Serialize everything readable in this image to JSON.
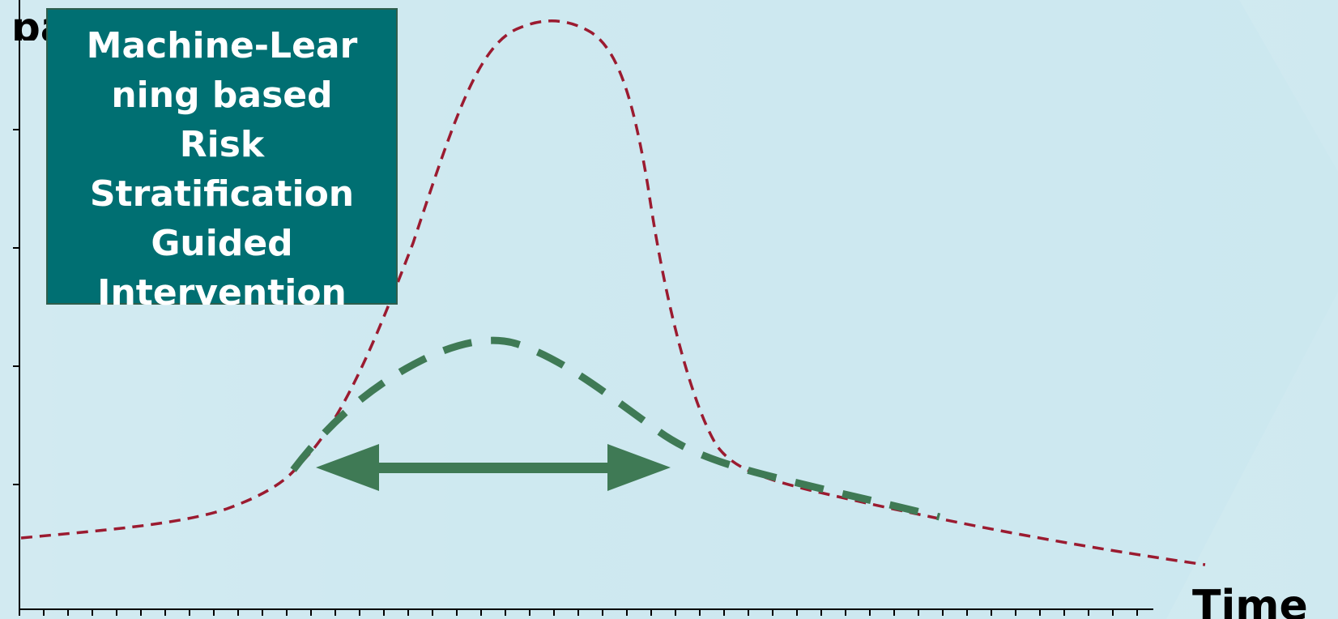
{
  "axes": {
    "y_title": "patients",
    "x_title": "Time"
  },
  "callout": {
    "lines": [
      "Machine-Lear",
      "ning based",
      "Risk",
      "Stratification",
      "Guided",
      "Intervention"
    ]
  },
  "colors": {
    "background": "#d6edf3",
    "chevron": "#c8e5ee",
    "callout_fill": "#006f72",
    "uncontrolled_curve": "#9b1b30",
    "intervention_curve": "#3f7a55",
    "axis": "#000000"
  },
  "curves": {
    "uncontrolled": "tall red dashed peak",
    "intervention": "flattened green dashed peak"
  }
}
